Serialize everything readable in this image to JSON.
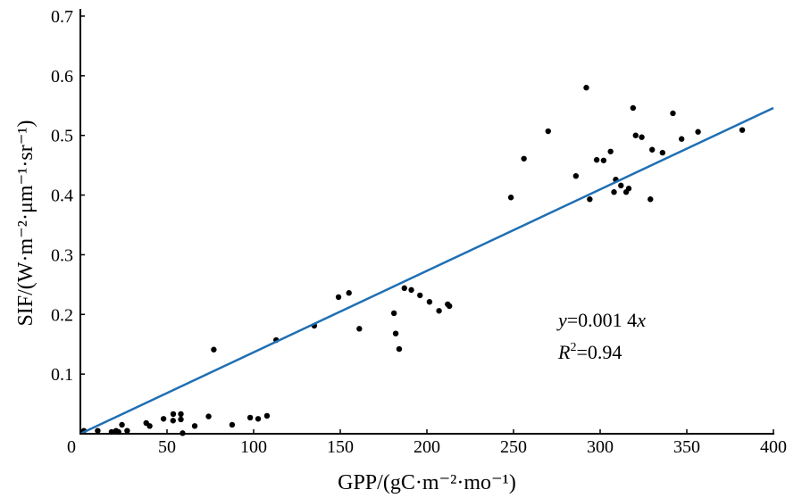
{
  "chart_data": {
    "type": "scatter",
    "title": "",
    "xlabel": "GPP/(gC·m⁻²·mo⁻¹)",
    "ylabel": "SIF/(W·m⁻²·μm⁻¹·sr⁻¹)",
    "xlim": [
      0,
      400
    ],
    "ylim": [
      0,
      0.7
    ],
    "xticks": [
      "0",
      "50",
      "100",
      "150",
      "200",
      "250",
      "300",
      "350",
      "400"
    ],
    "xtick_values": [
      0,
      50,
      100,
      150,
      200,
      250,
      300,
      350,
      400
    ],
    "yticks": [
      "0.1",
      "0.2",
      "0.3",
      "0.4",
      "0.5",
      "0.6",
      "0.7"
    ],
    "ytick_values": [
      0.1,
      0.2,
      0.3,
      0.4,
      0.5,
      0.6,
      0.7
    ],
    "grid": false,
    "point_color": "#000000",
    "line_color": "#1f6fb4",
    "fit_slope": 0.001365,
    "annotation": {
      "equation_y": "y",
      "equation_mid": "=0.001 4",
      "equation_x": "x",
      "r2_label": "R",
      "r2_sup": "2",
      "r2_value": "=0.94"
    },
    "points": [
      [
        2,
        0.005
      ],
      [
        10,
        0.005
      ],
      [
        18,
        0.003
      ],
      [
        20.6,
        0.005
      ],
      [
        22,
        0.003
      ],
      [
        24,
        0.015
      ],
      [
        27,
        0.005
      ],
      [
        38,
        0.018
      ],
      [
        40,
        0.013
      ],
      [
        48,
        0.025
      ],
      [
        53.5,
        0.022
      ],
      [
        53.6,
        0.033
      ],
      [
        58,
        0.033
      ],
      [
        58,
        0.024
      ],
      [
        59,
        0.001
      ],
      [
        66,
        0.013
      ],
      [
        74,
        0.029
      ],
      [
        77,
        0.141
      ],
      [
        87.6,
        0.015
      ],
      [
        98,
        0.027
      ],
      [
        102.6,
        0.025
      ],
      [
        107.7,
        0.03
      ],
      [
        113,
        0.157
      ],
      [
        135,
        0.181
      ],
      [
        149,
        0.229
      ],
      [
        155,
        0.236
      ],
      [
        161,
        0.176
      ],
      [
        181,
        0.202
      ],
      [
        182,
        0.168
      ],
      [
        184,
        0.142
      ],
      [
        187,
        0.244
      ],
      [
        191,
        0.241
      ],
      [
        196,
        0.232
      ],
      [
        201.5,
        0.221
      ],
      [
        207,
        0.206
      ],
      [
        212,
        0.217
      ],
      [
        213,
        0.214
      ],
      [
        248.5,
        0.396
      ],
      [
        256,
        0.461
      ],
      [
        270,
        0.507
      ],
      [
        286,
        0.432
      ],
      [
        292,
        0.58
      ],
      [
        294,
        0.393
      ],
      [
        298,
        0.459
      ],
      [
        302,
        0.458
      ],
      [
        306,
        0.473
      ],
      [
        308,
        0.405
      ],
      [
        309,
        0.426
      ],
      [
        312,
        0.416
      ],
      [
        315,
        0.405
      ],
      [
        316.5,
        0.411
      ],
      [
        319,
        0.546
      ],
      [
        320.5,
        0.5
      ],
      [
        324,
        0.497
      ],
      [
        329,
        0.393
      ],
      [
        330,
        0.476
      ],
      [
        336,
        0.471
      ],
      [
        342,
        0.537
      ],
      [
        347,
        0.494
      ],
      [
        356.5,
        0.506
      ],
      [
        382,
        0.509
      ]
    ]
  }
}
